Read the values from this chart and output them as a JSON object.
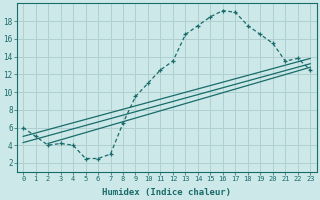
{
  "xlabel": "Humidex (Indice chaleur)",
  "bg_color": "#cce8e8",
  "grid_color": "#b0d0d0",
  "line_color": "#1a6b6b",
  "xlim": [
    -0.5,
    23.5
  ],
  "ylim": [
    1.0,
    20.0
  ],
  "yticks": [
    2,
    4,
    6,
    8,
    10,
    12,
    14,
    16,
    18
  ],
  "xticks": [
    0,
    1,
    2,
    3,
    4,
    5,
    6,
    7,
    8,
    9,
    10,
    11,
    12,
    13,
    14,
    15,
    16,
    17,
    18,
    19,
    20,
    21,
    22,
    23
  ],
  "xtick_labels": [
    "0",
    "1",
    "2",
    "3",
    "4",
    "5",
    "6",
    "7",
    "8",
    "9",
    "10",
    "11",
    "12",
    "13",
    "14",
    "15",
    "16",
    "17",
    "18",
    "19",
    "20",
    "21",
    "22",
    "23"
  ],
  "main_curve_x": [
    0,
    1,
    2,
    3,
    4,
    5,
    6,
    7,
    8,
    9,
    10,
    11,
    12,
    13,
    14,
    15,
    16,
    17,
    18,
    19,
    20,
    21,
    22,
    23
  ],
  "main_curve_y": [
    6.0,
    5.0,
    4.0,
    4.2,
    4.0,
    2.5,
    2.5,
    3.0,
    6.5,
    9.5,
    11.0,
    12.5,
    13.5,
    16.5,
    17.5,
    18.5,
    19.2,
    19.0,
    17.5,
    16.5,
    15.5,
    13.5,
    13.8,
    12.5
  ],
  "line1_x": [
    0,
    23
  ],
  "line1_y": [
    4.3,
    13.2
  ],
  "line2_x": [
    0,
    23
  ],
  "line2_y": [
    5.0,
    13.8
  ],
  "line3_x": [
    2,
    23
  ],
  "line3_y": [
    4.2,
    12.8
  ]
}
